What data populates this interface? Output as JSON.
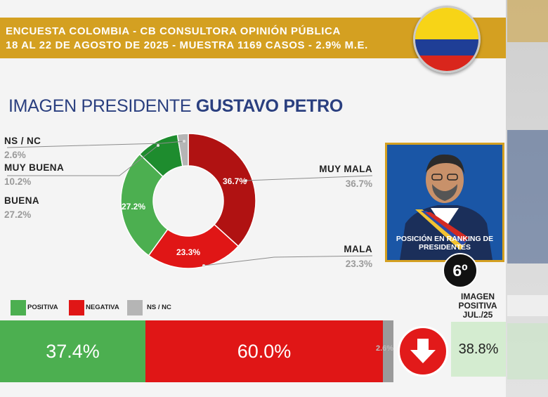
{
  "header": {
    "line1": "ENCUESTA COLOMBIA - CB CONSULTORA OPINIÓN PÚBLICA",
    "line2": "18 AL 22 DE AGOSTO DE 2025 - MUESTRA 1169 CASOS - 2.9% M.E."
  },
  "title": {
    "prefix": "IMAGEN PRESIDENTE",
    "name": "GUSTAVO PETRO"
  },
  "colors": {
    "header_gold": "#d4a021",
    "title_blue": "#2a3f7f",
    "muy_mala": "#b01212",
    "mala": "#e01616",
    "buena": "#4caf50",
    "muy_buena": "#1e8c2e",
    "nsnc": "#b5b5b5"
  },
  "chart_data": [
    {
      "type": "pie",
      "variant": "donut",
      "slices": [
        {
          "label": "MUY MALA",
          "value": 36.7,
          "display": "36.7%",
          "color": "#b01212"
        },
        {
          "label": "MALA",
          "value": 23.3,
          "display": "23.3%",
          "color": "#e01616"
        },
        {
          "label": "BUENA",
          "value": 27.2,
          "display": "27.2%",
          "color": "#4caf50"
        },
        {
          "label": "MUY BUENA",
          "value": 10.2,
          "display": "10.2%",
          "color": "#1e8c2e"
        },
        {
          "label": "NS / NC",
          "value": 2.6,
          "display": "2.6%",
          "color": "#b5b5b5"
        }
      ]
    },
    {
      "type": "bar",
      "orientation": "horizontal-stacked",
      "legend": [
        "POSITIVA",
        "NEGATIVA",
        "NS / NC"
      ],
      "segments": [
        {
          "label": "POSITIVA",
          "value": 37.4,
          "display": "37.4%",
          "color": "#4caf50"
        },
        {
          "label": "NEGATIVA",
          "value": 60.0,
          "display": "60.0%",
          "color": "#e01616"
        },
        {
          "label": "NS / NC",
          "value": 2.6,
          "display": "2.6%",
          "color": "#9a9a9a"
        }
      ]
    }
  ],
  "photo": {
    "caption": "POSICIÓN EN RANKING DE PRESIDENTES",
    "rank": "6º"
  },
  "comparison": {
    "label": "IMAGEN POSITIVA JUL./25",
    "value": "38.8%",
    "trend_icon": "arrow-down-icon"
  }
}
